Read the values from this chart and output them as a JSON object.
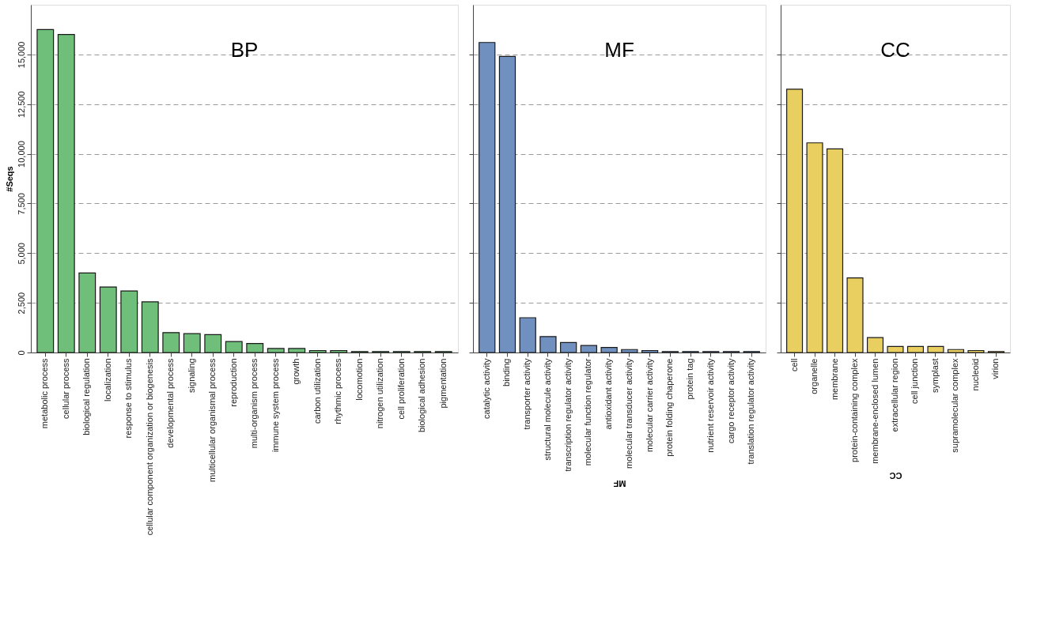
{
  "chart_data": [
    {
      "type": "bar",
      "title": "BP",
      "ylabel": "#Seqs",
      "color": "#6fbf7a",
      "categories": [
        "metabolic process",
        "cellular process",
        "biological regulation",
        "localization",
        "response to stimulus",
        "cellular component organization or biogenesis",
        "developmental process",
        "signaling",
        "multicellular organismal process",
        "reproduction",
        "multi-organism process",
        "immune system process",
        "growth",
        "carbon utilization",
        "rhythmic process",
        "locomotion",
        "nitrogen utilization",
        "cell proliferation",
        "biological adhesion",
        "pigmentation"
      ],
      "values": [
        16250,
        16000,
        4000,
        3300,
        3100,
        2550,
        1000,
        950,
        900,
        550,
        450,
        200,
        200,
        100,
        100,
        50,
        50,
        50,
        50,
        50
      ],
      "ylim": [
        0,
        17500
      ],
      "yticks": [
        {
          "value": 0,
          "label": "0"
        },
        {
          "value": 2500,
          "label": "2,500"
        },
        {
          "value": 5000,
          "label": "5,000"
        },
        {
          "value": 7500,
          "label": "7,500"
        },
        {
          "value": 10000,
          "label": "10,000"
        },
        {
          "value": 12500,
          "label": "12,500"
        },
        {
          "value": 15000,
          "label": "15,000"
        }
      ],
      "grid": "y"
    },
    {
      "type": "bar",
      "title": "MF",
      "xlabel": "MF",
      "color": "#7090bf",
      "categories": [
        "catalytic activity",
        "binding",
        "transporter activity",
        "structural molecule activity",
        "transcription regulator activity",
        "molecular function regulator",
        "antioxidant activity",
        "molecular transducer activity",
        "molecular carrier activity",
        "protein folding chaperone",
        "protein tag",
        "nutrient reservoir activity",
        "cargo receptor activity",
        "translation regulator activity"
      ],
      "values": [
        15600,
        14900,
        1750,
        800,
        500,
        350,
        250,
        150,
        100,
        50,
        50,
        50,
        50,
        50
      ],
      "ylim": [
        0,
        17500
      ],
      "yticks": [
        0,
        2500,
        5000,
        7500,
        10000,
        12500,
        15000
      ],
      "grid": "y",
      "tick_labels": "x"
    },
    {
      "type": "bar",
      "title": "CC",
      "xlabel": "CC",
      "color": "#e8cf60",
      "categories": [
        "cell",
        "organelle",
        "membrane",
        "protein-containing complex",
        "membrane-enclosed lumen",
        "extracellular region",
        "cell junction",
        "symplast",
        "supramolecular complex",
        "nucleoid",
        "virion"
      ],
      "values": [
        13250,
        10550,
        10250,
        3750,
        750,
        300,
        300,
        300,
        150,
        100,
        50
      ],
      "ylim": [
        0,
        17500
      ],
      "yticks": [
        0,
        2500,
        5000,
        7500,
        10000,
        12500,
        15000
      ],
      "grid": "y",
      "tick_labels": "x"
    }
  ]
}
